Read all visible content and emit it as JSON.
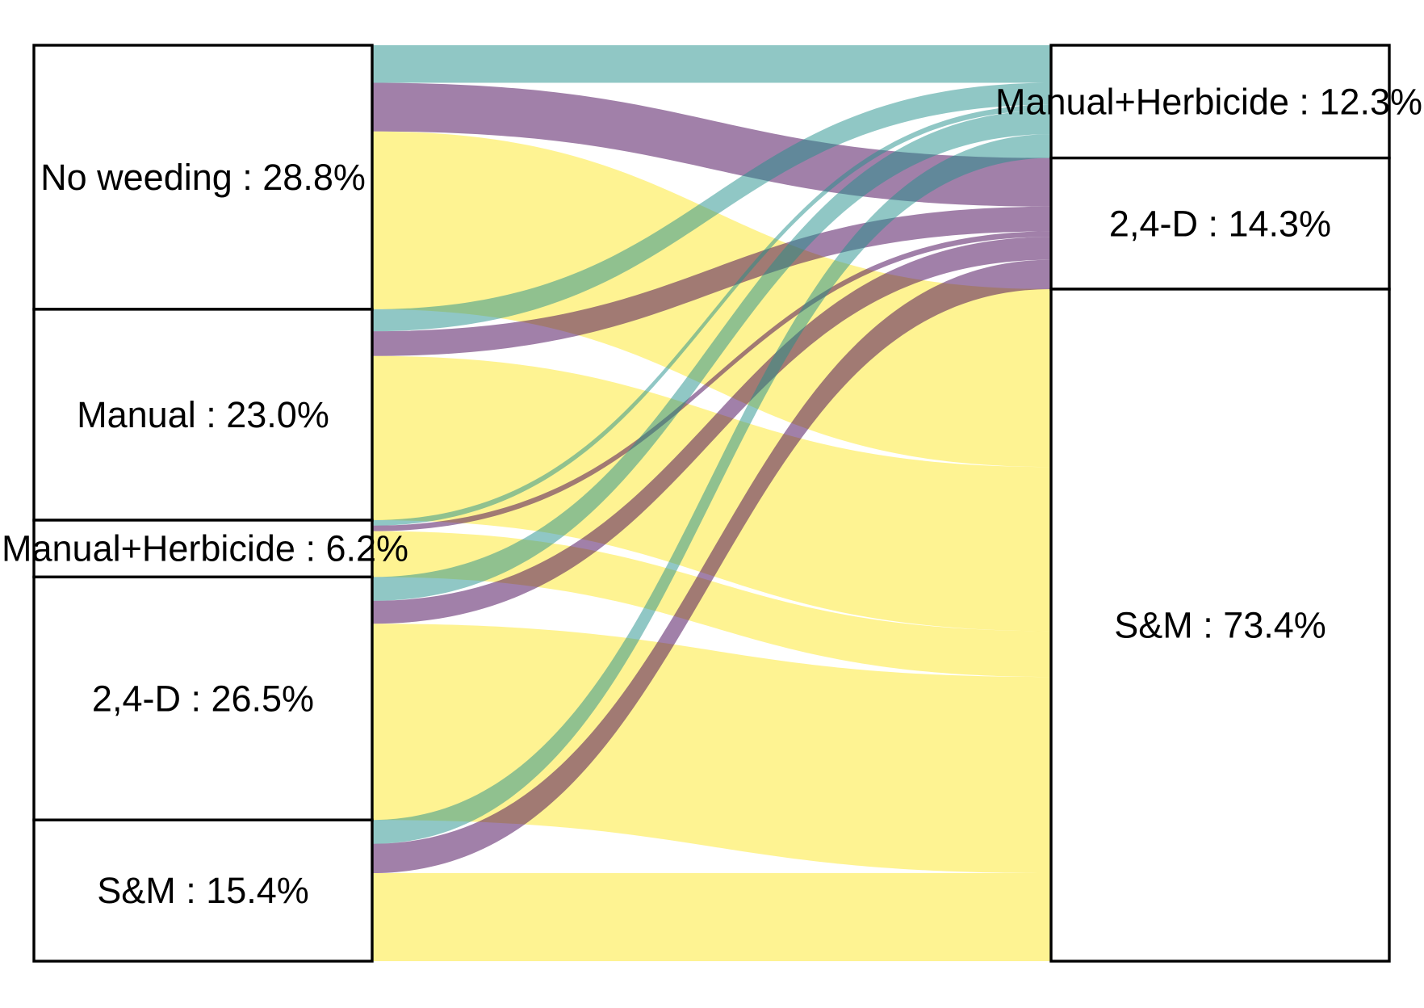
{
  "chart_data": {
    "type": "alluvial",
    "axes": [
      {
        "strata": [
          {
            "label": "No weeding : 28.8%",
            "percent": 28.8
          },
          {
            "label": "Manual : 23.0%",
            "percent": 23.0
          },
          {
            "label": "Manual+Herbicide : 6.2%",
            "percent": 6.2
          },
          {
            "label": "2,4-D : 26.5%",
            "percent": 26.5
          },
          {
            "label": "S&M : 15.4%",
            "percent": 15.4
          }
        ]
      },
      {
        "strata": [
          {
            "label": "Manual+Herbicide : 12.3%",
            "percent": 12.3,
            "color": "#21908C"
          },
          {
            "label": "2,4-D : 14.3%",
            "percent": 14.3,
            "color": "#440154"
          },
          {
            "label": "S&M : 73.4%",
            "percent": 73.4,
            "color": "#FDE725"
          }
        ]
      }
    ],
    "flows": [
      {
        "from": 0,
        "to": 0,
        "value": 4.1
      },
      {
        "from": 0,
        "to": 1,
        "value": 5.3
      },
      {
        "from": 0,
        "to": 2,
        "value": 19.4
      },
      {
        "from": 1,
        "to": 0,
        "value": 2.4
      },
      {
        "from": 1,
        "to": 1,
        "value": 2.7
      },
      {
        "from": 1,
        "to": 2,
        "value": 17.9
      },
      {
        "from": 2,
        "to": 0,
        "value": 0.6
      },
      {
        "from": 2,
        "to": 1,
        "value": 0.6
      },
      {
        "from": 2,
        "to": 2,
        "value": 5.0
      },
      {
        "from": 3,
        "to": 0,
        "value": 2.6
      },
      {
        "from": 3,
        "to": 1,
        "value": 2.5
      },
      {
        "from": 3,
        "to": 2,
        "value": 21.4
      },
      {
        "from": 4,
        "to": 0,
        "value": 2.6
      },
      {
        "from": 4,
        "to": 1,
        "value": 3.2
      },
      {
        "from": 4,
        "to": 2,
        "value": 9.6
      }
    ]
  }
}
